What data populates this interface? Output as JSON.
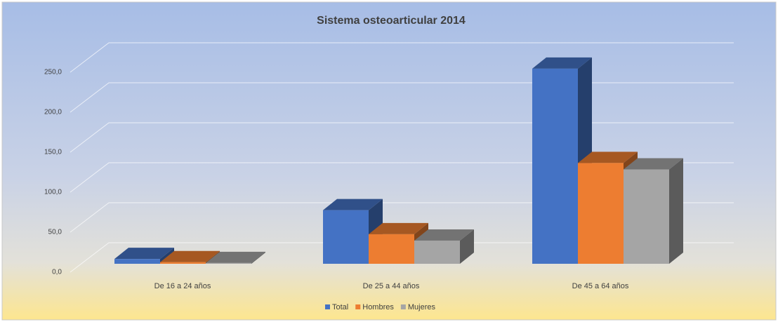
{
  "chart_data": {
    "type": "bar3d",
    "title": "Sistema osteoarticular 2014",
    "categories": [
      "De 16 a 24 años",
      "De 25 a 44 años",
      "De 45 a 64 años"
    ],
    "series": [
      {
        "name": "Total",
        "color": "#4472c4",
        "values": [
          6,
          67,
          244
        ]
      },
      {
        "name": "Hombres",
        "color": "#ed7d31",
        "values": [
          2,
          37,
          126
        ]
      },
      {
        "name": "Mujeres",
        "color": "#a5a5a5",
        "values": [
          1,
          29,
          118
        ]
      }
    ],
    "ylim": [
      0,
      250
    ],
    "yticks": [
      {
        "value": 0,
        "label": "0,0"
      },
      {
        "value": 50,
        "label": "50,0"
      },
      {
        "value": 100,
        "label": "100,0"
      },
      {
        "value": 150,
        "label": "150,0"
      },
      {
        "value": 200,
        "label": "200,0"
      },
      {
        "value": 250,
        "label": "250,0"
      }
    ],
    "grid": true,
    "legend": "bottom"
  }
}
